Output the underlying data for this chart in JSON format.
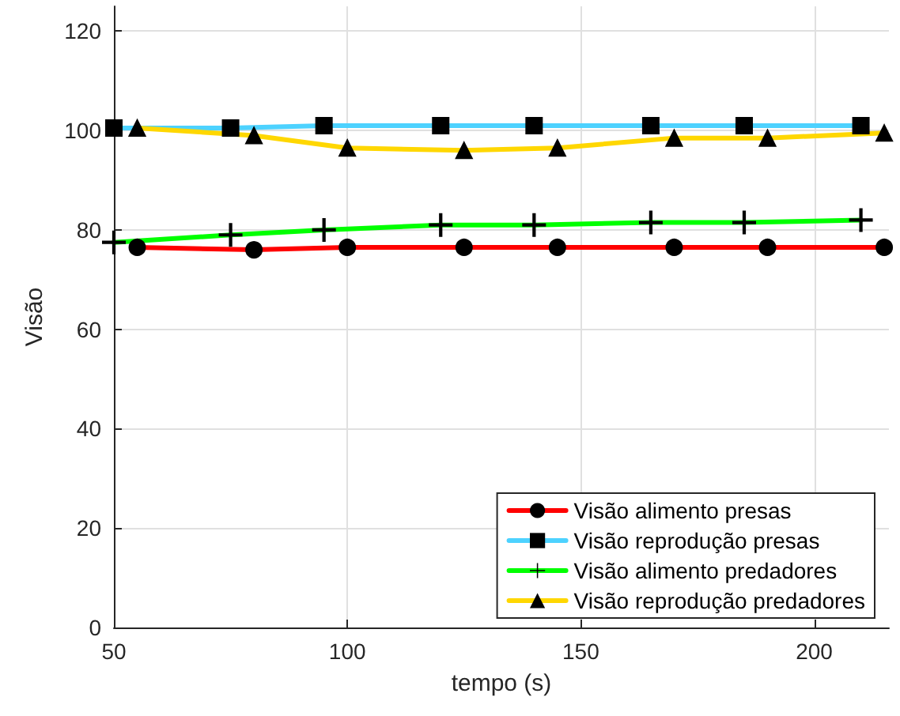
{
  "chart_data": {
    "type": "line",
    "xlabel": "tempo (s)",
    "ylabel": "Visão",
    "xlim": [
      50,
      216
    ],
    "xticks": [
      50,
      100,
      150,
      200
    ],
    "ylim": [
      0,
      125
    ],
    "yticks": [
      0,
      20,
      40,
      60,
      80,
      100,
      120
    ],
    "grid": true,
    "legend": "bottom right",
    "series": [
      {
        "name": "Visão alimento presas",
        "color": "#ff0000",
        "marker": "circle",
        "x": [
          55,
          80,
          100,
          125,
          145,
          170,
          190,
          215
        ],
        "values": [
          76.5,
          76,
          76.5,
          76.5,
          76.5,
          76.5,
          76.5,
          76.5
        ]
      },
      {
        "name": "Visão reprodução presas",
        "color": "#4dd2ff",
        "marker": "square",
        "x": [
          50,
          75,
          95,
          120,
          140,
          165,
          185,
          210
        ],
        "values": [
          100.5,
          100.5,
          101,
          101,
          101,
          101,
          101,
          101
        ]
      },
      {
        "name": "Visão alimento predadores",
        "color": "#00ff00",
        "marker": "cross",
        "x": [
          50,
          75,
          95,
          120,
          140,
          165,
          185,
          210
        ],
        "values": [
          77.5,
          79,
          80,
          81,
          81,
          81.5,
          81.5,
          82
        ]
      },
      {
        "name": "Visão reprodução predadores",
        "color": "#ffd700",
        "marker": "triangle",
        "x": [
          55,
          80,
          100,
          125,
          145,
          170,
          190,
          215
        ],
        "values": [
          100.5,
          99,
          96.5,
          96,
          96.5,
          98.5,
          98.5,
          99.5
        ]
      }
    ]
  }
}
